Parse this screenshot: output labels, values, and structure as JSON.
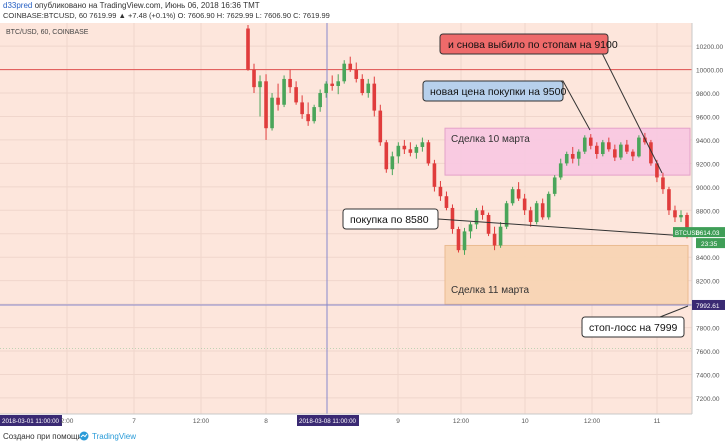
{
  "header": {
    "user": "d33pred",
    "published": "опубликовано на TradingView.com, Июнь 06, 2018 16:36 ТМТ",
    "ohlc_line": "COINBASE:BTCUSD, 60  7619.99  ▲ +7.48 (+0.1%)  O: 7606.90  H: 7629.99  L: 7606.90  C: 7619.99"
  },
  "chart_label": "BTC/USD, 60, COINBASE",
  "footer": {
    "made_with": "Создано при помощи",
    "brand": "TradingView"
  },
  "colors": {
    "background": "#fde6dc",
    "up": "#4aa55a",
    "down": "#e03c3c",
    "resistance": "#e05050",
    "crosshair": "#8888cc",
    "pink_zone": "#f9c9e2",
    "orange_zone": "#f8d5b4",
    "callout_red": "#ee6a6a",
    "callout_blue": "#b7d0ec",
    "price_tag": "#3f9e57",
    "time_tag": "#3a2a73"
  },
  "chart_data": {
    "type": "candlestick",
    "symbol": "BTCUSD",
    "exchange": "COINBASE",
    "interval": "60",
    "ylim": [
      7080,
      10380
    ],
    "yticks": [
      10200,
      10000,
      9800,
      9600,
      9400,
      9200,
      9000,
      8800,
      8600,
      8400,
      8200,
      8000,
      7800,
      7600,
      7400,
      7200
    ],
    "xticks": [
      {
        "label": "2018-03-01 11:00:00",
        "type": "time-tag"
      },
      {
        "label": "2:00"
      },
      {
        "label": "7"
      },
      {
        "label": "12:00"
      },
      {
        "label": "8"
      },
      {
        "label": "2018-03-08 11:00:00",
        "type": "time-tag"
      },
      {
        "label": "9"
      },
      {
        "label": "12:00"
      },
      {
        "label": "10"
      },
      {
        "label": "12:00"
      },
      {
        "label": "11"
      }
    ],
    "candles": [
      [
        10350,
        10380,
        9990,
        10000
      ],
      [
        10000,
        10050,
        9800,
        9850
      ],
      [
        9850,
        9950,
        9600,
        9900
      ],
      [
        9900,
        9960,
        9400,
        9500
      ],
      [
        9500,
        9800,
        9480,
        9760
      ],
      [
        9760,
        9880,
        9650,
        9700
      ],
      [
        9700,
        9950,
        9680,
        9920
      ],
      [
        9920,
        10000,
        9800,
        9850
      ],
      [
        9850,
        9900,
        9700,
        9720
      ],
      [
        9720,
        9780,
        9580,
        9620
      ],
      [
        9620,
        9720,
        9520,
        9560
      ],
      [
        9560,
        9700,
        9540,
        9680
      ],
      [
        9680,
        9830,
        9640,
        9800
      ],
      [
        9800,
        9900,
        9760,
        9880
      ],
      [
        9880,
        9950,
        9820,
        9860
      ],
      [
        9860,
        9960,
        9790,
        9900
      ],
      [
        9900,
        10080,
        9880,
        10050
      ],
      [
        10050,
        10110,
        9980,
        10000
      ],
      [
        10000,
        10060,
        9890,
        9920
      ],
      [
        9920,
        9960,
        9780,
        9800
      ],
      [
        9800,
        9920,
        9760,
        9880
      ],
      [
        9880,
        9940,
        9600,
        9650
      ],
      [
        9650,
        9700,
        9350,
        9380
      ],
      [
        9380,
        9400,
        9120,
        9150
      ],
      [
        9150,
        9300,
        9100,
        9260
      ],
      [
        9260,
        9380,
        9200,
        9350
      ],
      [
        9350,
        9400,
        9280,
        9320
      ],
      [
        9320,
        9380,
        9260,
        9290
      ],
      [
        9290,
        9360,
        9240,
        9340
      ],
      [
        9340,
        9420,
        9300,
        9380
      ],
      [
        9380,
        9400,
        9180,
        9200
      ],
      [
        9200,
        9230,
        8960,
        9000
      ],
      [
        9000,
        9050,
        8880,
        8920
      ],
      [
        8920,
        8960,
        8800,
        8820
      ],
      [
        8820,
        8850,
        8600,
        8640
      ],
      [
        8640,
        8660,
        8440,
        8460
      ],
      [
        8460,
        8650,
        8420,
        8620
      ],
      [
        8620,
        8700,
        8560,
        8680
      ],
      [
        8680,
        8820,
        8640,
        8800
      ],
      [
        8800,
        8840,
        8720,
        8760
      ],
      [
        8760,
        8780,
        8580,
        8600
      ],
      [
        8600,
        8660,
        8460,
        8500
      ],
      [
        8500,
        8700,
        8480,
        8660
      ],
      [
        8660,
        8880,
        8640,
        8860
      ],
      [
        8860,
        9000,
        8840,
        8980
      ],
      [
        8980,
        9040,
        8880,
        8900
      ],
      [
        8900,
        8940,
        8760,
        8800
      ],
      [
        8800,
        8830,
        8660,
        8700
      ],
      [
        8700,
        8880,
        8680,
        8860
      ],
      [
        8860,
        8900,
        8720,
        8740
      ],
      [
        8740,
        8960,
        8720,
        8940
      ],
      [
        8940,
        9100,
        8920,
        9080
      ],
      [
        9080,
        9240,
        9060,
        9200
      ],
      [
        9200,
        9300,
        9180,
        9280
      ],
      [
        9280,
        9340,
        9200,
        9240
      ],
      [
        9240,
        9320,
        9180,
        9300
      ],
      [
        9300,
        9440,
        9280,
        9420
      ],
      [
        9420,
        9450,
        9320,
        9350
      ],
      [
        9350,
        9380,
        9240,
        9280
      ],
      [
        9280,
        9400,
        9260,
        9380
      ],
      [
        9380,
        9420,
        9300,
        9320
      ],
      [
        9320,
        9360,
        9220,
        9250
      ],
      [
        9250,
        9380,
        9230,
        9360
      ],
      [
        9360,
        9400,
        9280,
        9300
      ],
      [
        9300,
        9320,
        9220,
        9260
      ],
      [
        9260,
        9440,
        9250,
        9420
      ],
      [
        9420,
        9460,
        9360,
        9380
      ],
      [
        9380,
        9400,
        9180,
        9200
      ],
      [
        9200,
        9230,
        9040,
        9080
      ],
      [
        9080,
        9120,
        8940,
        8980
      ],
      [
        8980,
        9000,
        8760,
        8800
      ],
      [
        8800,
        8840,
        8700,
        8740
      ],
      [
        8740,
        8800,
        8700,
        8760
      ],
      [
        8760,
        8780,
        8560,
        8614
      ]
    ],
    "levels": [
      {
        "price": 10000,
        "color": "#e05050"
      },
      {
        "price": 7992.61,
        "color": "#8888cc"
      }
    ],
    "zones": [
      {
        "label": "Сделка 10 марта",
        "price_top": 9500,
        "price_bottom": 9100,
        "color": "#f9c9e2"
      },
      {
        "label": "Сделка 11 марта",
        "price_top": 8500,
        "price_bottom": 7999,
        "color": "#f8d5b4"
      }
    ],
    "callouts": [
      {
        "text": "и снова выбило по стопам на 9100",
        "style": "red"
      },
      {
        "text": "новая цена покупки на 9500",
        "style": "blue"
      },
      {
        "text": "покупка по 8580",
        "style": "white"
      },
      {
        "text": "стоп-лосс на 7999",
        "style": "white"
      }
    ],
    "price_tags": [
      {
        "label": "BTCUSD",
        "value": "8614.03",
        "time": "23:35",
        "color": "#3f9e57"
      },
      {
        "value": "7992.61",
        "color": "#3a2a73"
      }
    ]
  }
}
